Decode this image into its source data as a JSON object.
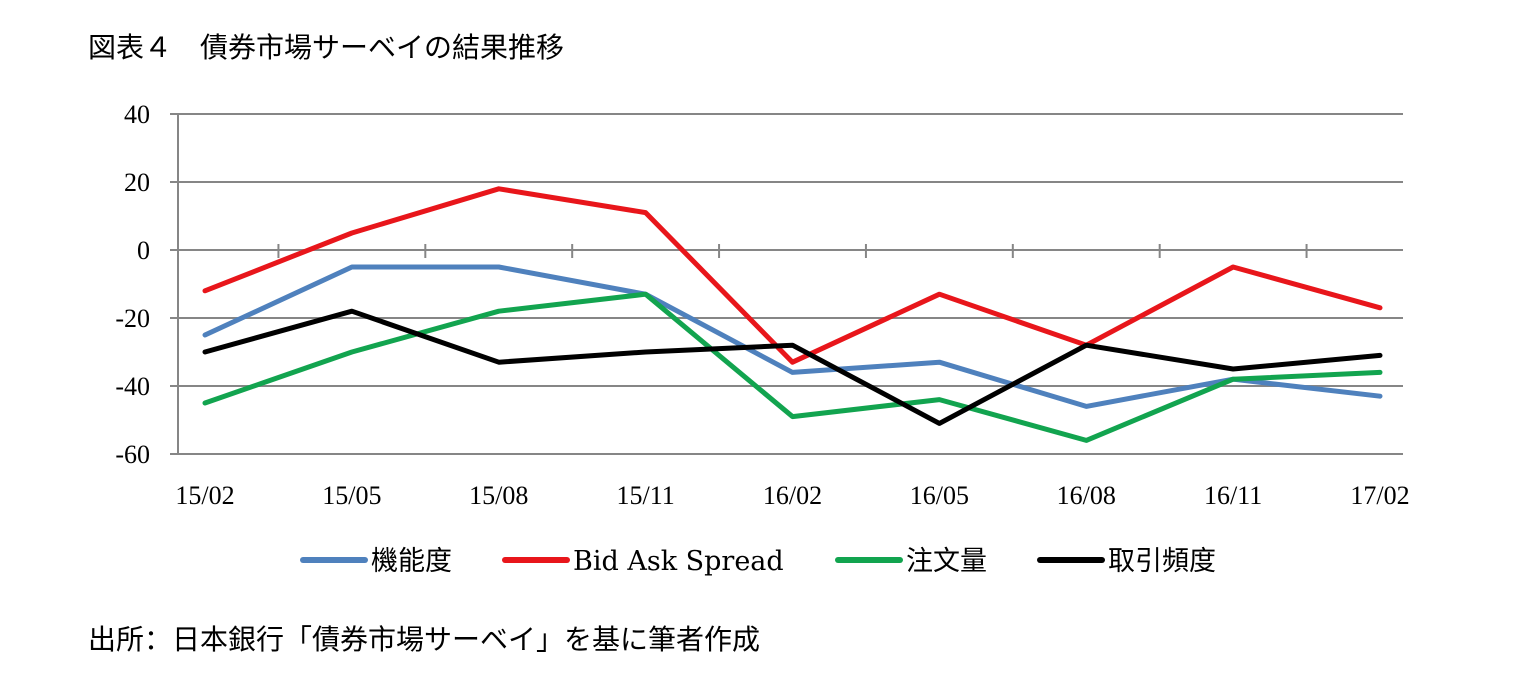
{
  "title": "図表４　債券市場サーベイの結果推移",
  "source": "出所：日本銀行「債券市場サーベイ」を基に筆者作成",
  "chart_data": {
    "type": "line",
    "categories": [
      "15/02",
      "15/05",
      "15/08",
      "15/11",
      "16/02",
      "16/05",
      "16/08",
      "16/11",
      "17/02"
    ],
    "ylim": [
      -60,
      40
    ],
    "yticks": [
      40,
      20,
      0,
      -20,
      -40,
      -60
    ],
    "grid": true,
    "legend_position": "bottom",
    "series": [
      {
        "name": "機能度",
        "color": "#4F81BD",
        "values": [
          -25,
          -5,
          -5,
          -13,
          -36,
          -33,
          -46,
          -38,
          -43
        ]
      },
      {
        "name": "Bid Ask Spread",
        "color": "#E8161B",
        "values": [
          -12,
          5,
          18,
          11,
          -33,
          -13,
          -28,
          -5,
          -17
        ]
      },
      {
        "name": "注文量",
        "color": "#12A44F",
        "values": [
          -45,
          -30,
          -18,
          -13,
          -49,
          -44,
          -56,
          -38,
          -36
        ]
      },
      {
        "name": "取引頻度",
        "color": "#000000",
        "values": [
          -30,
          -18,
          -33,
          -30,
          -28,
          -51,
          -28,
          -35,
          -31
        ]
      }
    ]
  }
}
